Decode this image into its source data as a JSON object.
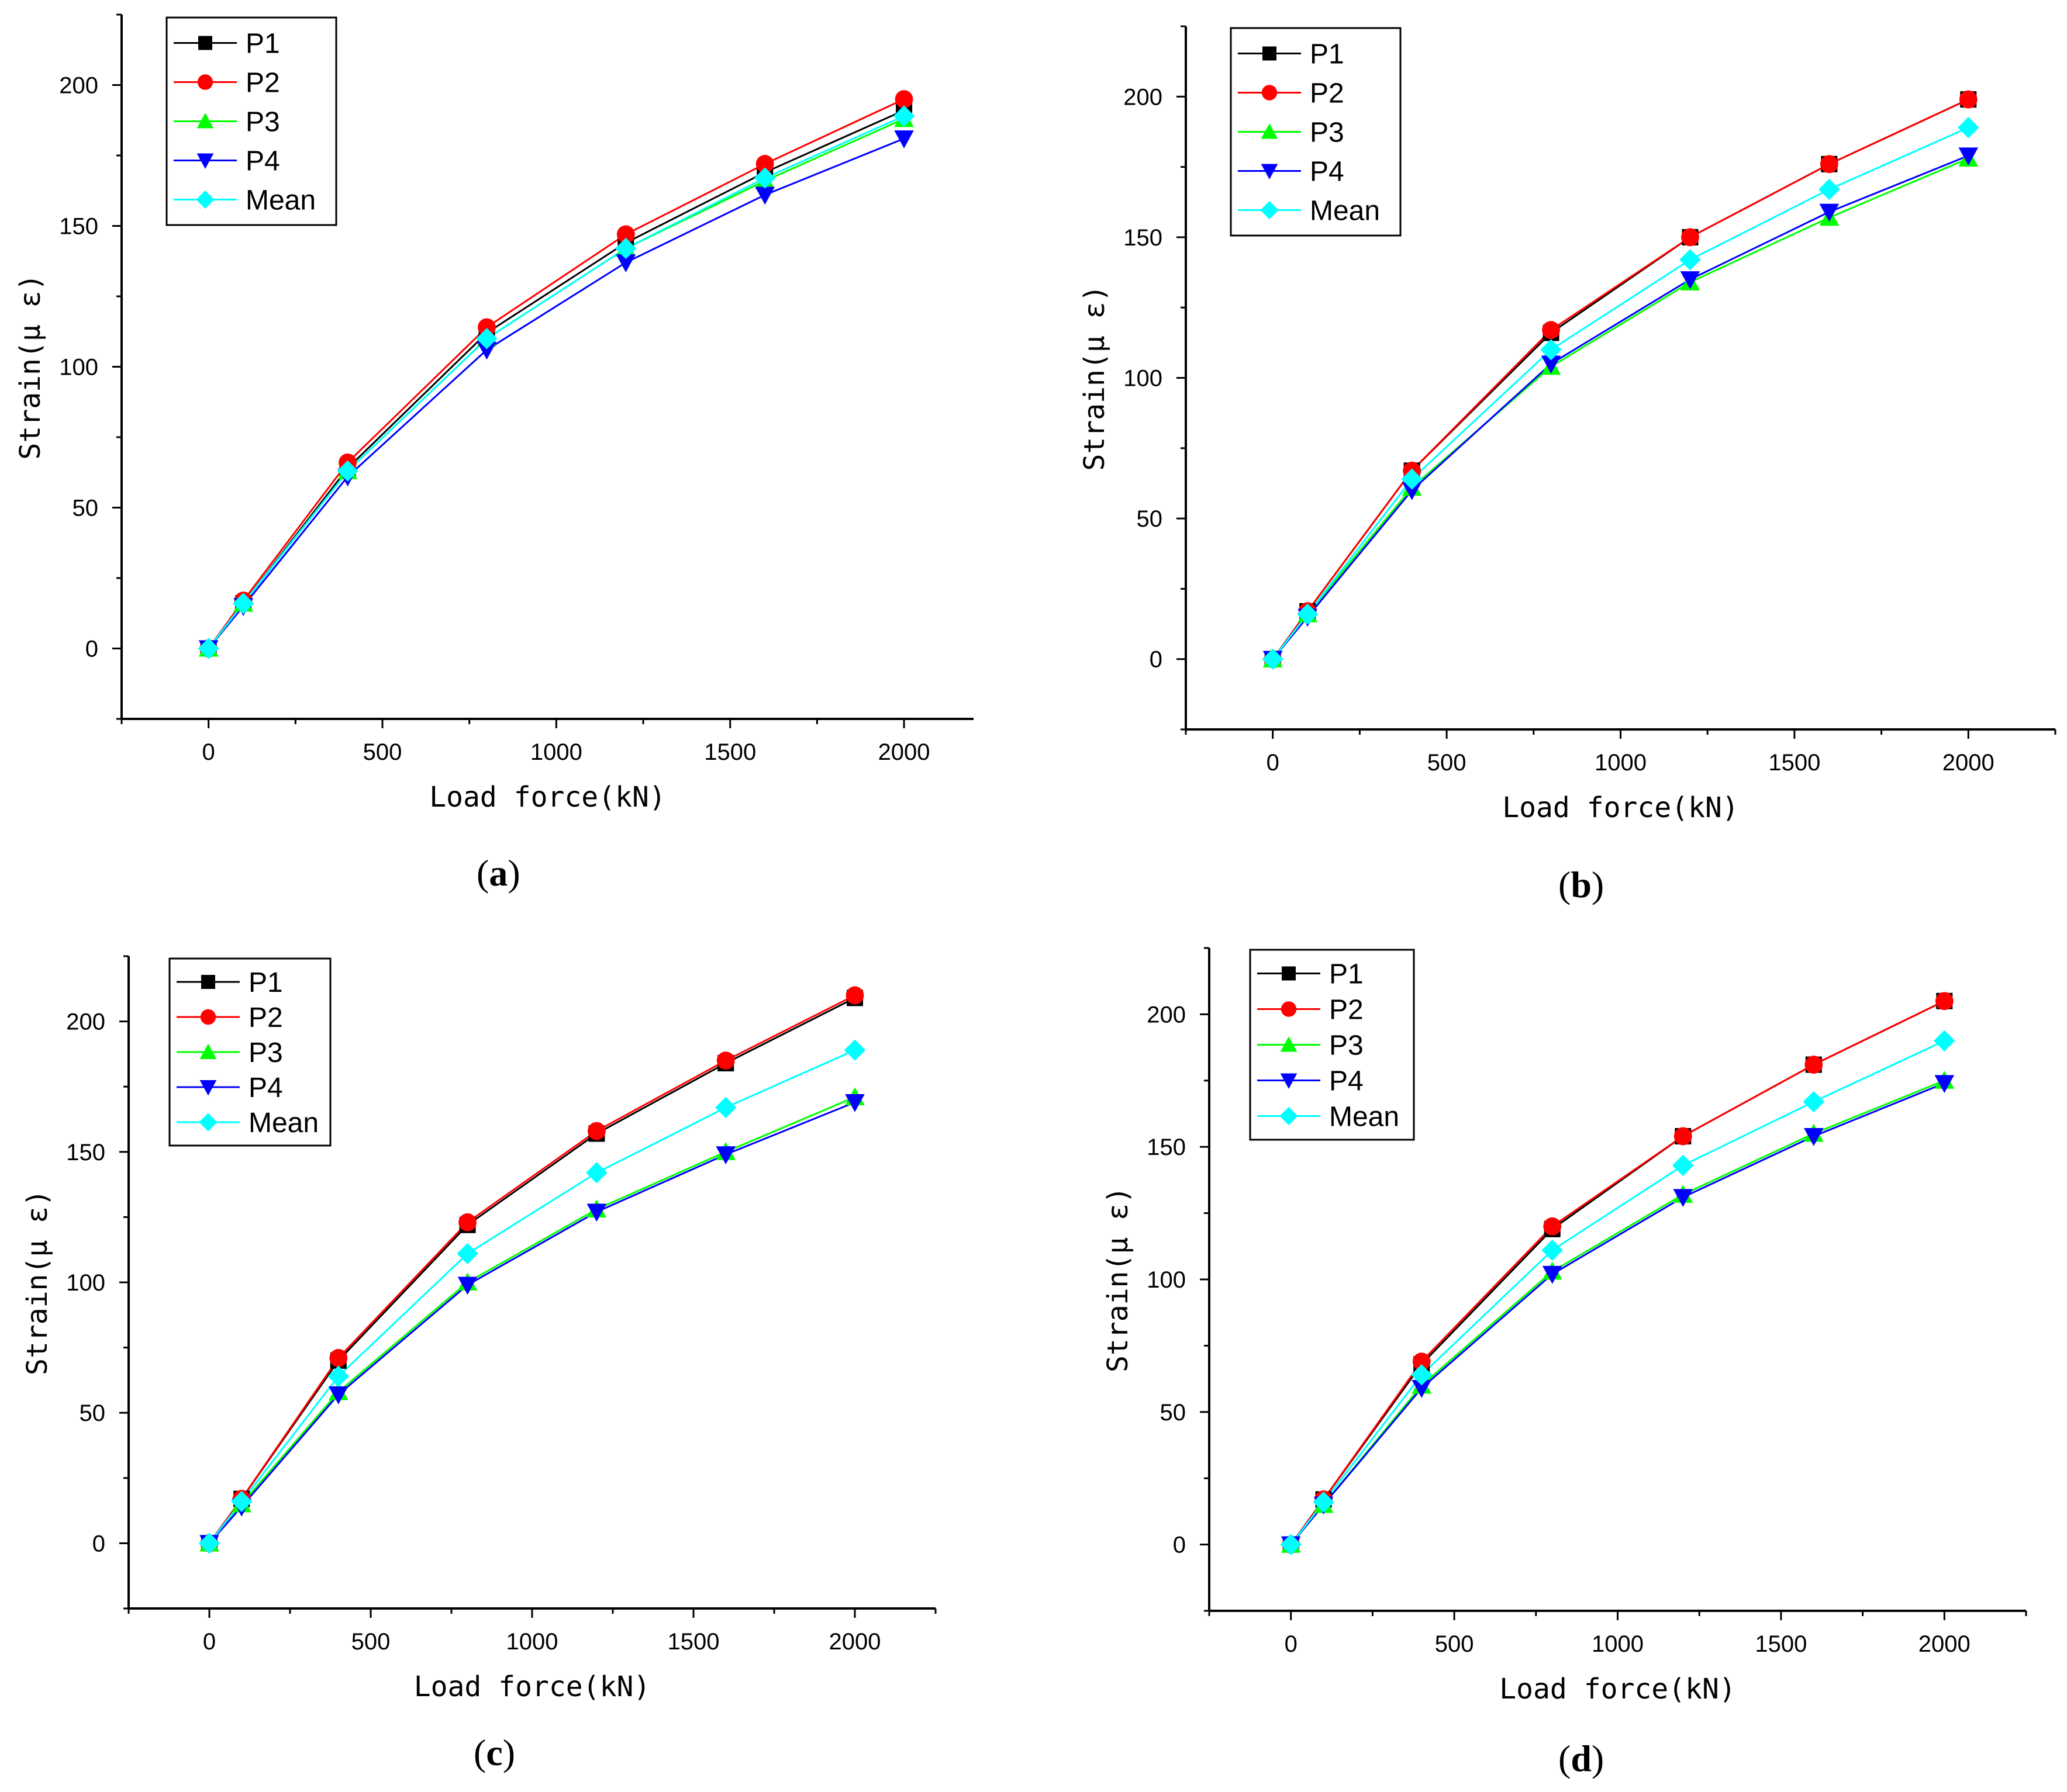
{
  "figure": {
    "panels": [
      {
        "id": "a",
        "label_open": "(",
        "label": "a",
        "label_close": ")"
      },
      {
        "id": "b",
        "label_open": "(",
        "label": "b",
        "label_close": ")"
      },
      {
        "id": "c",
        "label_open": "(",
        "label": "c",
        "label_close": ")"
      },
      {
        "id": "d",
        "label_open": "(",
        "label": "d",
        "label_close": ")"
      }
    ]
  },
  "series_styles": [
    {
      "name": "P1",
      "color": "#000000",
      "marker": "square"
    },
    {
      "name": "P2",
      "color": "#ff0000",
      "marker": "circle"
    },
    {
      "name": "P3",
      "color": "#00ff00",
      "marker": "triangle-up"
    },
    {
      "name": "P4",
      "color": "#0000ff",
      "marker": "triangle-down"
    },
    {
      "name": "Mean",
      "color": "#00ffff",
      "marker": "diamond"
    }
  ],
  "chart_data": [
    {
      "panel": "a",
      "type": "line",
      "xlabel": "Load force(kN)",
      "ylabel": "Strain(μ ε)",
      "xlim": [
        -250,
        2200
      ],
      "ylim": [
        -25,
        225
      ],
      "xticks": [
        0,
        500,
        1000,
        1500,
        2000
      ],
      "yticks": [
        0,
        50,
        100,
        150,
        200
      ],
      "legend_position": "top-left",
      "x": [
        0,
        100,
        400,
        800,
        1200,
        1600,
        2000
      ],
      "series": [
        {
          "name": "P1",
          "values": [
            0,
            16,
            64,
            112,
            144,
            169,
            191
          ]
        },
        {
          "name": "P2",
          "values": [
            0,
            17,
            66,
            114,
            147,
            172,
            195
          ]
        },
        {
          "name": "P3",
          "values": [
            0,
            16,
            63,
            110,
            142,
            166,
            188
          ]
        },
        {
          "name": "P4",
          "values": [
            0,
            15,
            61,
            106,
            137,
            161,
            181
          ]
        },
        {
          "name": "Mean",
          "values": [
            0,
            16,
            63,
            110,
            142,
            167,
            189
          ]
        }
      ]
    },
    {
      "panel": "b",
      "type": "line",
      "xlabel": "Load force(kN)",
      "ylabel": "Strain(μ ε)",
      "xlim": [
        -250,
        2250
      ],
      "ylim": [
        -25,
        225
      ],
      "xticks": [
        0,
        500,
        1000,
        1500,
        2000
      ],
      "yticks": [
        0,
        50,
        100,
        150,
        200
      ],
      "legend_position": "top-left",
      "x": [
        0,
        100,
        400,
        800,
        1200,
        1600,
        2000
      ],
      "series": [
        {
          "name": "P1",
          "values": [
            0,
            17,
            67,
            116,
            150,
            176,
            199
          ]
        },
        {
          "name": "P2",
          "values": [
            0,
            17,
            67,
            117,
            150,
            176,
            199
          ]
        },
        {
          "name": "P3",
          "values": [
            0,
            16,
            61,
            104,
            134,
            157,
            178
          ]
        },
        {
          "name": "P4",
          "values": [
            0,
            15,
            60,
            105,
            135,
            159,
            179
          ]
        },
        {
          "name": "Mean",
          "values": [
            0,
            16,
            64,
            110,
            142,
            167,
            189
          ]
        }
      ]
    },
    {
      "panel": "c",
      "type": "line",
      "xlabel": "Load force(kN)",
      "ylabel": "Strain(μ ε)",
      "xlim": [
        -250,
        2250
      ],
      "ylim": [
        -25,
        225
      ],
      "xticks": [
        0,
        500,
        1000,
        1500,
        2000
      ],
      "yticks": [
        0,
        50,
        100,
        150,
        200
      ],
      "legend_position": "top-left",
      "x": [
        0,
        100,
        400,
        800,
        1200,
        1600,
        2000
      ],
      "series": [
        {
          "name": "P1",
          "values": [
            0,
            17,
            70,
            122,
            157,
            184,
            209
          ]
        },
        {
          "name": "P2",
          "values": [
            0,
            17,
            71,
            123,
            158,
            185,
            210
          ]
        },
        {
          "name": "P3",
          "values": [
            0,
            15,
            58,
            100,
            128,
            150,
            171
          ]
        },
        {
          "name": "P4",
          "values": [
            0,
            14,
            57,
            99,
            127,
            149,
            169
          ]
        },
        {
          "name": "Mean",
          "values": [
            0,
            16,
            64,
            111,
            142,
            167,
            189
          ]
        }
      ]
    },
    {
      "panel": "d",
      "type": "line",
      "xlabel": "Load force(kN)",
      "ylabel": "Strain(μ ε)",
      "xlim": [
        -250,
        2250
      ],
      "ylim": [
        -25,
        225
      ],
      "xticks": [
        0,
        500,
        1000,
        1500,
        2000
      ],
      "yticks": [
        0,
        50,
        100,
        150,
        200
      ],
      "legend_position": "top-left",
      "x": [
        0,
        100,
        400,
        800,
        1200,
        1600,
        2000
      ],
      "series": [
        {
          "name": "P1",
          "values": [
            0,
            17,
            68,
            119,
            154,
            181,
            205
          ]
        },
        {
          "name": "P2",
          "values": [
            0,
            17,
            69,
            120,
            154,
            181,
            205
          ]
        },
        {
          "name": "P3",
          "values": [
            0,
            15,
            60,
            103,
            132,
            155,
            175
          ]
        },
        {
          "name": "P4",
          "values": [
            0,
            15,
            59,
            102,
            131,
            154,
            174
          ]
        },
        {
          "name": "Mean",
          "values": [
            0,
            16,
            64,
            111,
            143,
            167,
            190
          ]
        }
      ]
    }
  ]
}
